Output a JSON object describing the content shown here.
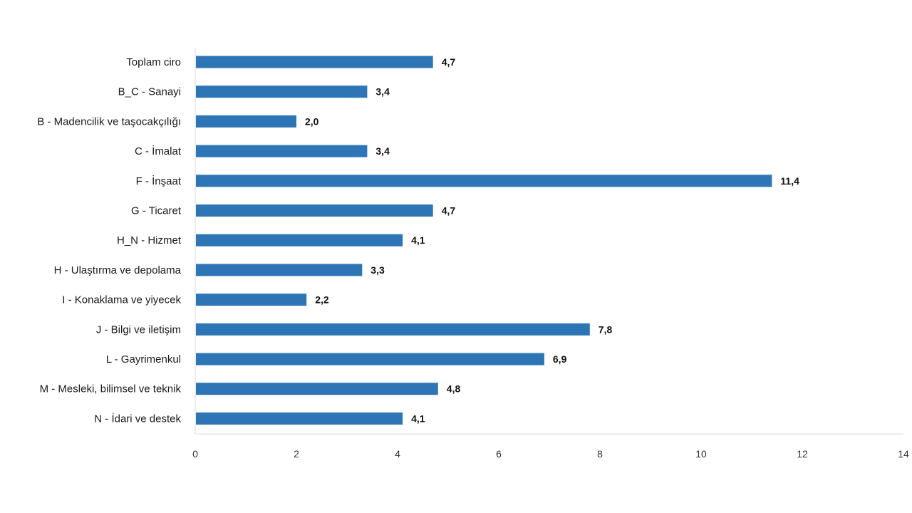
{
  "chart_data": {
    "type": "bar",
    "orientation": "horizontal",
    "title": "",
    "xlabel": "",
    "ylabel": "",
    "xlim": [
      0,
      14
    ],
    "x_ticks": [
      0,
      2,
      4,
      6,
      8,
      10,
      12,
      14
    ],
    "grid": false,
    "legend": "none",
    "decimal_separator": ",",
    "bar_color": "#2e75b6",
    "categories": [
      "Toplam ciro",
      "B_C - Sanayi",
      "B - Madencilik ve taşocakçılığı",
      "C - İmalat",
      "F - İnşaat",
      "G - Ticaret",
      "H_N - Hizmet",
      "H - Ulaştırma ve depolama",
      "I - Konaklama ve yiyecek",
      "J - Bilgi ve iletişim",
      "L - Gayrimenkul",
      "M - Mesleki, bilimsel ve teknik",
      "N - İdari ve destek"
    ],
    "values": [
      4.7,
      3.4,
      2.0,
      3.4,
      11.4,
      4.7,
      4.1,
      3.3,
      2.2,
      7.8,
      6.9,
      4.8,
      4.1
    ],
    "value_labels": [
      "4,7",
      "3,4",
      "2,0",
      "3,4",
      "11,4",
      "4,7",
      "4,1",
      "3,3",
      "2,2",
      "7,8",
      "6,9",
      "4,8",
      "4,1"
    ],
    "tick_labels": [
      "0",
      "2",
      "4",
      "6",
      "8",
      "10",
      "12",
      "14"
    ]
  }
}
